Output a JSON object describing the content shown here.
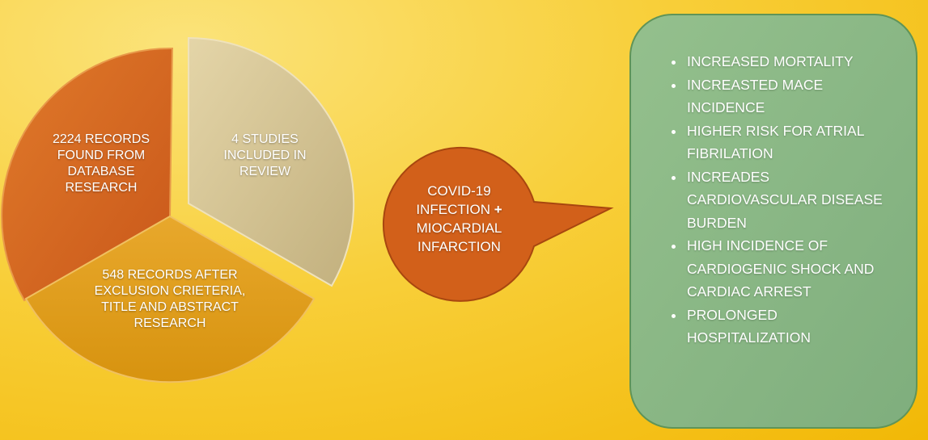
{
  "pie_segments": [
    {
      "label": "2224 RECORDS FOUND FROM DATABASE RESEARCH"
    },
    {
      "label": "4 STUDIES INCLUDED IN REVIEW"
    },
    {
      "label": "548 RECORDS AFTER EXCLUSION CRIETERIA, TITLE AND ABSTRACT RESEARCH"
    }
  ],
  "center": {
    "line1": "COVID-19 INFECTION",
    "plus": "+",
    "line2": "MIOCARDIAL INFARCTION"
  },
  "outcomes": [
    "INCREASED MORTALITY",
    "INCREASTED MACE INCIDENCE",
    "HIGHER RISK FOR ATRIAL FIBRILATION",
    "INCREADES CARDIOVASCULAR DISEASE BURDEN",
    "HIGH INCIDENCE OF CARDIOGENIC SHOCK AND CARDIAC ARREST",
    "PROLONGED HOSPITALIZATION"
  ]
}
